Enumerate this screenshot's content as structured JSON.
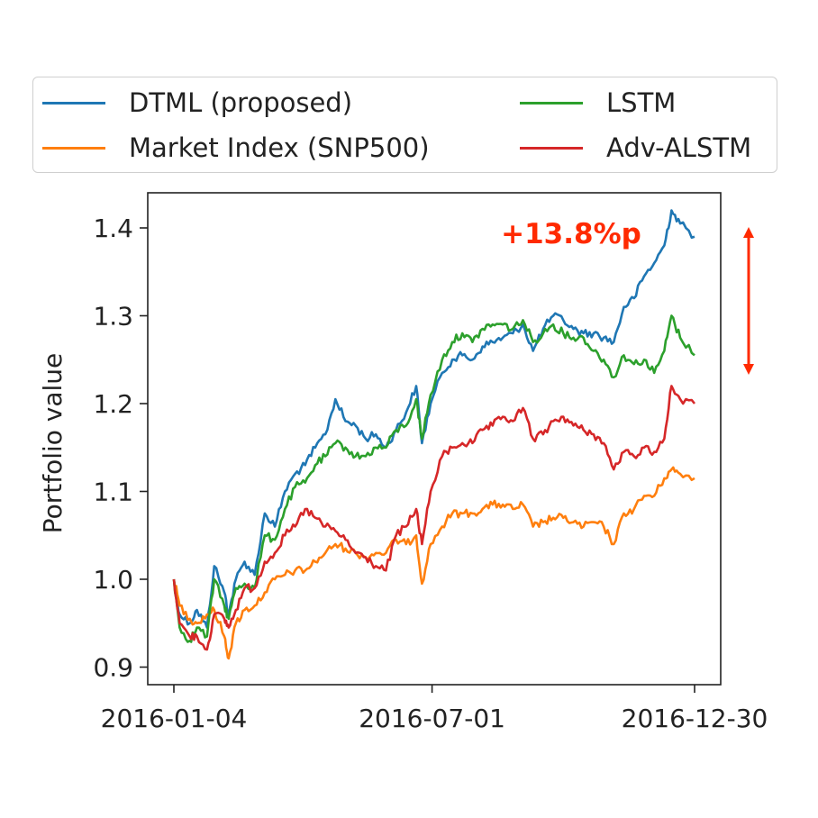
{
  "chart_data": {
    "type": "line",
    "title": "",
    "xlabel": "",
    "ylabel": "Portfolio value",
    "xlim": [
      "2016-01-04",
      "2016-12-30"
    ],
    "ylim": [
      0.88,
      1.44
    ],
    "x_ticks": [
      "2016-01-04",
      "2016-07-01",
      "2016-12-30"
    ],
    "y_ticks": [
      "0.9",
      "1.0",
      "1.1",
      "1.2",
      "1.3",
      "1.4"
    ],
    "grid": false,
    "legend_position": "top",
    "annotation": {
      "text": "+13.8%p",
      "color": "#ff2a00"
    },
    "series": [
      {
        "name": "DTML (proposed)",
        "color": "#1f77b4",
        "points": [
          [
            "2016-01-04",
            1.0
          ],
          [
            "2016-01-08",
            0.96
          ],
          [
            "2016-01-15",
            0.95
          ],
          [
            "2016-01-20",
            0.965
          ],
          [
            "2016-01-27",
            0.945
          ],
          [
            "2016-02-01",
            1.015
          ],
          [
            "2016-02-08",
            0.985
          ],
          [
            "2016-02-11",
            0.96
          ],
          [
            "2016-02-16",
            1.0
          ],
          [
            "2016-02-22",
            1.02
          ],
          [
            "2016-02-29",
            1.005
          ],
          [
            "2016-03-07",
            1.075
          ],
          [
            "2016-03-14",
            1.06
          ],
          [
            "2016-03-21",
            1.1
          ],
          [
            "2016-03-28",
            1.12
          ],
          [
            "2016-04-04",
            1.13
          ],
          [
            "2016-04-11",
            1.15
          ],
          [
            "2016-04-18",
            1.165
          ],
          [
            "2016-04-25",
            1.205
          ],
          [
            "2016-05-02",
            1.18
          ],
          [
            "2016-05-09",
            1.175
          ],
          [
            "2016-05-16",
            1.16
          ],
          [
            "2016-05-23",
            1.165
          ],
          [
            "2016-05-30",
            1.15
          ],
          [
            "2016-06-06",
            1.17
          ],
          [
            "2016-06-13",
            1.19
          ],
          [
            "2016-06-20",
            1.22
          ],
          [
            "2016-06-24",
            1.155
          ],
          [
            "2016-06-30",
            1.2
          ],
          [
            "2016-07-08",
            1.235
          ],
          [
            "2016-07-15",
            1.25
          ],
          [
            "2016-07-22",
            1.255
          ],
          [
            "2016-07-29",
            1.25
          ],
          [
            "2016-08-05",
            1.265
          ],
          [
            "2016-08-12",
            1.27
          ],
          [
            "2016-08-19",
            1.275
          ],
          [
            "2016-08-26",
            1.28
          ],
          [
            "2016-09-02",
            1.29
          ],
          [
            "2016-09-09",
            1.26
          ],
          [
            "2016-09-16",
            1.285
          ],
          [
            "2016-09-23",
            1.3
          ],
          [
            "2016-09-30",
            1.295
          ],
          [
            "2016-10-07",
            1.285
          ],
          [
            "2016-10-14",
            1.28
          ],
          [
            "2016-10-21",
            1.28
          ],
          [
            "2016-10-28",
            1.275
          ],
          [
            "2016-11-04",
            1.27
          ],
          [
            "2016-11-11",
            1.31
          ],
          [
            "2016-11-18",
            1.32
          ],
          [
            "2016-11-25",
            1.345
          ],
          [
            "2016-12-02",
            1.36
          ],
          [
            "2016-12-09",
            1.38
          ],
          [
            "2016-12-14",
            1.42
          ],
          [
            "2016-12-20",
            1.405
          ],
          [
            "2016-12-30",
            1.39
          ]
        ]
      },
      {
        "name": "Market Index (SNP500)",
        "color": "#ff7f0e",
        "points": [
          [
            "2016-01-04",
            1.0
          ],
          [
            "2016-01-08",
            0.97
          ],
          [
            "2016-01-15",
            0.955
          ],
          [
            "2016-01-20",
            0.95
          ],
          [
            "2016-01-27",
            0.96
          ],
          [
            "2016-02-01",
            0.965
          ],
          [
            "2016-02-08",
            0.935
          ],
          [
            "2016-02-11",
            0.91
          ],
          [
            "2016-02-16",
            0.95
          ],
          [
            "2016-02-22",
            0.965
          ],
          [
            "2016-02-29",
            0.97
          ],
          [
            "2016-03-07",
            0.985
          ],
          [
            "2016-03-14",
            1.0
          ],
          [
            "2016-03-21",
            1.005
          ],
          [
            "2016-03-28",
            1.01
          ],
          [
            "2016-04-04",
            1.01
          ],
          [
            "2016-04-11",
            1.02
          ],
          [
            "2016-04-18",
            1.03
          ],
          [
            "2016-04-25",
            1.04
          ],
          [
            "2016-05-02",
            1.035
          ],
          [
            "2016-05-09",
            1.03
          ],
          [
            "2016-05-16",
            1.025
          ],
          [
            "2016-05-23",
            1.03
          ],
          [
            "2016-05-30",
            1.03
          ],
          [
            "2016-06-06",
            1.045
          ],
          [
            "2016-06-13",
            1.04
          ],
          [
            "2016-06-20",
            1.05
          ],
          [
            "2016-06-24",
            0.995
          ],
          [
            "2016-06-30",
            1.04
          ],
          [
            "2016-07-08",
            1.06
          ],
          [
            "2016-07-15",
            1.075
          ],
          [
            "2016-07-22",
            1.075
          ],
          [
            "2016-07-29",
            1.075
          ],
          [
            "2016-08-05",
            1.08
          ],
          [
            "2016-08-12",
            1.085
          ],
          [
            "2016-08-19",
            1.085
          ],
          [
            "2016-08-26",
            1.08
          ],
          [
            "2016-09-02",
            1.085
          ],
          [
            "2016-09-09",
            1.06
          ],
          [
            "2016-09-16",
            1.065
          ],
          [
            "2016-09-23",
            1.07
          ],
          [
            "2016-09-30",
            1.07
          ],
          [
            "2016-10-07",
            1.065
          ],
          [
            "2016-10-14",
            1.06
          ],
          [
            "2016-10-21",
            1.065
          ],
          [
            "2016-10-28",
            1.06
          ],
          [
            "2016-11-04",
            1.04
          ],
          [
            "2016-11-11",
            1.075
          ],
          [
            "2016-11-18",
            1.08
          ],
          [
            "2016-11-25",
            1.095
          ],
          [
            "2016-12-02",
            1.095
          ],
          [
            "2016-12-09",
            1.115
          ],
          [
            "2016-12-14",
            1.125
          ],
          [
            "2016-12-20",
            1.12
          ],
          [
            "2016-12-30",
            1.115
          ]
        ]
      },
      {
        "name": "LSTM",
        "color": "#2ca02c",
        "points": [
          [
            "2016-01-04",
            1.0
          ],
          [
            "2016-01-08",
            0.945
          ],
          [
            "2016-01-15",
            0.93
          ],
          [
            "2016-01-20",
            0.945
          ],
          [
            "2016-01-27",
            0.935
          ],
          [
            "2016-02-01",
            1.0
          ],
          [
            "2016-02-08",
            0.97
          ],
          [
            "2016-02-11",
            0.955
          ],
          [
            "2016-02-16",
            0.99
          ],
          [
            "2016-02-22",
            0.995
          ],
          [
            "2016-02-29",
            0.99
          ],
          [
            "2016-03-07",
            1.05
          ],
          [
            "2016-03-14",
            1.045
          ],
          [
            "2016-03-21",
            1.08
          ],
          [
            "2016-03-28",
            1.105
          ],
          [
            "2016-04-04",
            1.11
          ],
          [
            "2016-04-11",
            1.13
          ],
          [
            "2016-04-18",
            1.14
          ],
          [
            "2016-04-25",
            1.155
          ],
          [
            "2016-05-02",
            1.15
          ],
          [
            "2016-05-09",
            1.14
          ],
          [
            "2016-05-16",
            1.14
          ],
          [
            "2016-05-23",
            1.15
          ],
          [
            "2016-05-30",
            1.15
          ],
          [
            "2016-06-06",
            1.17
          ],
          [
            "2016-06-13",
            1.175
          ],
          [
            "2016-06-20",
            1.205
          ],
          [
            "2016-06-24",
            1.16
          ],
          [
            "2016-06-30",
            1.21
          ],
          [
            "2016-07-08",
            1.25
          ],
          [
            "2016-07-15",
            1.27
          ],
          [
            "2016-07-22",
            1.28
          ],
          [
            "2016-07-29",
            1.27
          ],
          [
            "2016-08-05",
            1.285
          ],
          [
            "2016-08-12",
            1.29
          ],
          [
            "2016-08-19",
            1.29
          ],
          [
            "2016-08-26",
            1.285
          ],
          [
            "2016-09-02",
            1.295
          ],
          [
            "2016-09-09",
            1.27
          ],
          [
            "2016-09-16",
            1.28
          ],
          [
            "2016-09-23",
            1.29
          ],
          [
            "2016-09-30",
            1.28
          ],
          [
            "2016-10-07",
            1.275
          ],
          [
            "2016-10-14",
            1.275
          ],
          [
            "2016-10-21",
            1.26
          ],
          [
            "2016-10-28",
            1.25
          ],
          [
            "2016-11-04",
            1.23
          ],
          [
            "2016-11-11",
            1.255
          ],
          [
            "2016-11-18",
            1.245
          ],
          [
            "2016-11-25",
            1.25
          ],
          [
            "2016-12-02",
            1.235
          ],
          [
            "2016-12-09",
            1.26
          ],
          [
            "2016-12-14",
            1.3
          ],
          [
            "2016-12-20",
            1.275
          ],
          [
            "2016-12-30",
            1.255
          ]
        ]
      },
      {
        "name": "Adv-ALSTM",
        "color": "#d62728",
        "points": [
          [
            "2016-01-04",
            1.0
          ],
          [
            "2016-01-08",
            0.95
          ],
          [
            "2016-01-15",
            0.935
          ],
          [
            "2016-01-20",
            0.935
          ],
          [
            "2016-01-27",
            0.92
          ],
          [
            "2016-02-01",
            0.96
          ],
          [
            "2016-02-08",
            0.955
          ],
          [
            "2016-02-11",
            0.945
          ],
          [
            "2016-02-16",
            0.965
          ],
          [
            "2016-02-22",
            0.99
          ],
          [
            "2016-02-29",
            0.99
          ],
          [
            "2016-03-07",
            1.02
          ],
          [
            "2016-03-14",
            1.03
          ],
          [
            "2016-03-21",
            1.05
          ],
          [
            "2016-03-28",
            1.06
          ],
          [
            "2016-04-04",
            1.08
          ],
          [
            "2016-04-11",
            1.07
          ],
          [
            "2016-04-18",
            1.06
          ],
          [
            "2016-04-25",
            1.055
          ],
          [
            "2016-05-02",
            1.045
          ],
          [
            "2016-05-09",
            1.03
          ],
          [
            "2016-05-16",
            1.025
          ],
          [
            "2016-05-23",
            1.015
          ],
          [
            "2016-05-30",
            1.01
          ],
          [
            "2016-06-06",
            1.05
          ],
          [
            "2016-06-13",
            1.06
          ],
          [
            "2016-06-20",
            1.08
          ],
          [
            "2016-06-24",
            1.04
          ],
          [
            "2016-06-30",
            1.1
          ],
          [
            "2016-07-08",
            1.14
          ],
          [
            "2016-07-15",
            1.15
          ],
          [
            "2016-07-22",
            1.155
          ],
          [
            "2016-07-29",
            1.155
          ],
          [
            "2016-08-05",
            1.17
          ],
          [
            "2016-08-12",
            1.175
          ],
          [
            "2016-08-19",
            1.185
          ],
          [
            "2016-08-26",
            1.18
          ],
          [
            "2016-09-02",
            1.195
          ],
          [
            "2016-09-09",
            1.16
          ],
          [
            "2016-09-16",
            1.165
          ],
          [
            "2016-09-23",
            1.18
          ],
          [
            "2016-09-30",
            1.185
          ],
          [
            "2016-10-07",
            1.175
          ],
          [
            "2016-10-14",
            1.17
          ],
          [
            "2016-10-21",
            1.165
          ],
          [
            "2016-10-28",
            1.155
          ],
          [
            "2016-11-04",
            1.125
          ],
          [
            "2016-11-11",
            1.145
          ],
          [
            "2016-11-18",
            1.14
          ],
          [
            "2016-11-25",
            1.15
          ],
          [
            "2016-12-02",
            1.145
          ],
          [
            "2016-12-09",
            1.16
          ],
          [
            "2016-12-14",
            1.22
          ],
          [
            "2016-12-20",
            1.205
          ],
          [
            "2016-12-30",
            1.2
          ]
        ]
      }
    ]
  }
}
